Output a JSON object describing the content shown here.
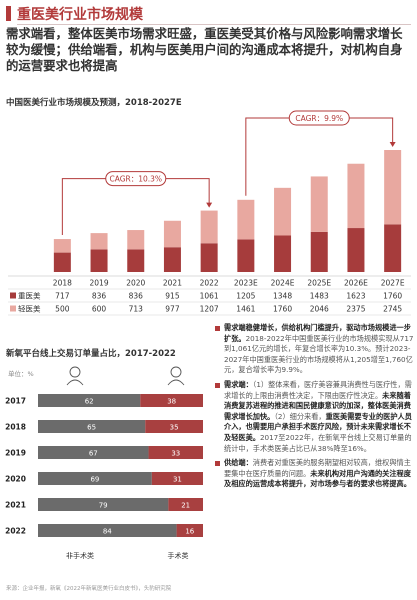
{
  "section_title": "重医美行业市场规模",
  "intro_text": "需求端看，整体医美市场需求旺盛，重医美受其价格与风险影响需求增长较为缓慢；供给端看，机构与医美用户间的沟通成本将提升，对机构自身的运营要求也将提高",
  "chart1": {
    "title": "中国医美行业市场规模及预测，2018-2027E",
    "cagr_left": "CAGR：10.3%",
    "cagr_right": "CAGR：9.9%",
    "legend_heavy": "重医美",
    "legend_light": "轻医美"
  },
  "chart2": {
    "title": "新氧平台线上交易订单量占比，2017-2022",
    "unit_label": "单位：%",
    "legend_non_surgical": "非手术类",
    "legend_surgical": "手术类"
  },
  "bullets": [
    {
      "head": "需求端稳健增长，供给机构门槛提升，驱动市场规模进一步扩张。",
      "body": "2018-2022年中国重医美行业的市场规模实现从717到1,061亿元的增长，年复合增长率为10.3%。预计2023-2027年中国重医美行业的市场规模将从1,205增至1,760亿元，复合增长率为9.9%。"
    },
    {
      "head": "需求端：",
      "body1": "（1）整体来看，医疗美容兼具消费性与医疗性，需求增长的上限由消费性决定，下限由医疗性决定。",
      "em1": "未来随着消费复苏进程的推进和国民健康意识的加深，整体医美消费需求增长加快。",
      "body2": "（2）细分来看，",
      "em2": "重医美需要专业的医护人员介入，也需要用户承担手术医疗风险，预计未来需求增长不及轻医美。",
      "body3": "2017至2022年，在新氧平台线上交易订单量的统计中，手术类医美占比已从38%降至16%。"
    },
    {
      "head": "供给端：",
      "body1": "消费者对重医美的服务期望相对较高，维权舆情主要集中在医疗质量的问题。",
      "em1": "未来机构对用户沟通的关注程度及相应的运营成本将提升，对市场参与者的要求也将提高。"
    }
  ],
  "source_text": "来源：企业年报，新氧《2022年新氧医美行业白皮书》，头豹研究院",
  "colors": {
    "heavy": "#a63c3c",
    "light": "#e8a8a0",
    "accent": "#b23a3a",
    "non_surgical": "#6b6b6b",
    "surgical": "#a84040"
  },
  "chart_data": [
    {
      "type": "bar",
      "stacked": true,
      "categories": [
        "2018",
        "2019",
        "2020",
        "2021",
        "2022",
        "2023E",
        "2024E",
        "2025E",
        "2026E",
        "2027E"
      ],
      "series": [
        {
          "name": "重医美",
          "values": [
            717,
            836,
            836,
            915,
            1061,
            1205,
            1348,
            1483,
            1623,
            1760
          ]
        },
        {
          "name": "轻医美",
          "values": [
            500,
            600,
            713,
            977,
            1207,
            1461,
            1760,
            2046,
            2375,
            2745
          ]
        }
      ],
      "annotations": [
        "CAGR：10.3%",
        "CAGR：9.9%"
      ],
      "legend": "bottom-left table"
    },
    {
      "type": "bar",
      "orientation": "horizontal",
      "stacked": true,
      "categories": [
        "2017",
        "2018",
        "2019",
        "2020",
        "2021",
        "2022"
      ],
      "series": [
        {
          "name": "非手术类",
          "values": [
            62,
            65,
            67,
            69,
            79,
            84
          ]
        },
        {
          "name": "手术类",
          "values": [
            38,
            35,
            33,
            31,
            21,
            16
          ]
        }
      ],
      "unit": "单位：%",
      "legend": "bottom"
    }
  ]
}
